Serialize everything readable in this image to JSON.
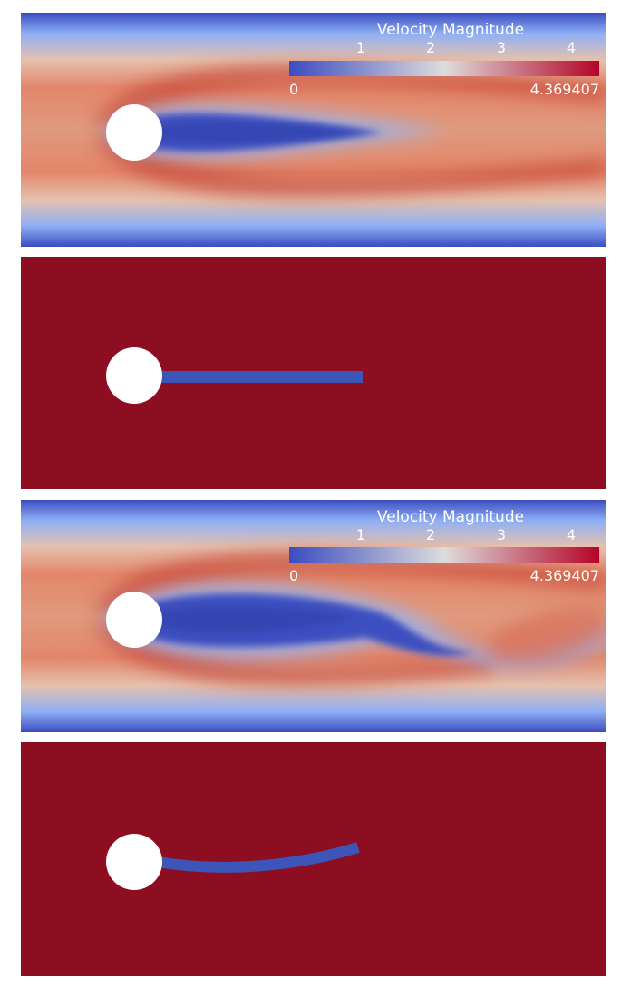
{
  "panels": [
    {
      "name": "velocity-field-straight",
      "colorbar": {
        "title": "Velocity Magnitude",
        "ticks": [
          "1",
          "2",
          "3",
          "4"
        ],
        "min_label": "0",
        "max_label": "4.369407"
      }
    },
    {
      "name": "solid-mask-straight-flag"
    },
    {
      "name": "velocity-field-deformed",
      "colorbar": {
        "title": "Velocity Magnitude",
        "ticks": [
          "1",
          "2",
          "3",
          "4"
        ],
        "min_label": "0",
        "max_label": "4.369407"
      }
    },
    {
      "name": "solid-mask-bent-flag"
    }
  ],
  "colors": {
    "cool": "#3b4cc0",
    "mid": "#dddcdc",
    "warm": "#b40426",
    "fluid_background": "#8c0e20",
    "flag_color": "#3d55b8",
    "cylinder": "#ffffff"
  }
}
